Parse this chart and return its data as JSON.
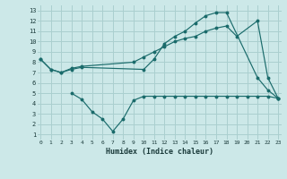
{
  "bg_color": "#cce8e8",
  "grid_color": "#aacfcf",
  "line_color": "#1a6b6b",
  "line1_x": [
    0,
    1,
    2,
    3,
    4,
    10,
    11,
    12,
    13,
    14,
    15,
    16,
    17,
    18,
    21,
    22,
    23
  ],
  "line1_y": [
    8.3,
    7.3,
    7.0,
    7.3,
    7.5,
    7.3,
    8.3,
    9.8,
    10.5,
    11.0,
    11.8,
    12.5,
    12.8,
    12.8,
    6.5,
    5.3,
    4.5
  ],
  "line2_x": [
    0,
    1,
    2,
    3,
    4,
    9,
    10,
    11,
    12,
    13,
    14,
    15,
    16,
    17,
    18,
    19,
    21,
    22,
    23
  ],
  "line2_y": [
    8.3,
    7.3,
    7.0,
    7.4,
    7.6,
    8.0,
    8.5,
    9.0,
    9.5,
    10.0,
    10.3,
    10.5,
    11.0,
    11.3,
    11.5,
    10.5,
    12.0,
    6.5,
    4.5
  ],
  "line3_x": [
    3,
    4,
    5,
    6,
    7,
    8,
    9,
    10,
    11,
    12,
    13,
    14,
    15,
    16,
    17,
    18,
    19,
    20,
    21,
    22,
    23
  ],
  "line3_y": [
    5.0,
    4.4,
    3.2,
    2.5,
    1.3,
    2.5,
    4.3,
    4.7,
    4.7,
    4.7,
    4.7,
    4.7,
    4.7,
    4.7,
    4.7,
    4.7,
    4.7,
    4.7,
    4.7,
    4.7,
    4.5
  ],
  "xlim": [
    -0.3,
    23.3
  ],
  "ylim": [
    0.5,
    13.5
  ],
  "xticks": [
    0,
    1,
    2,
    3,
    4,
    5,
    6,
    7,
    8,
    9,
    10,
    11,
    12,
    13,
    14,
    15,
    16,
    17,
    18,
    19,
    20,
    21,
    22,
    23
  ],
  "yticks": [
    1,
    2,
    3,
    4,
    5,
    6,
    7,
    8,
    9,
    10,
    11,
    12,
    13
  ],
  "xlabel": "Humidex (Indice chaleur)"
}
